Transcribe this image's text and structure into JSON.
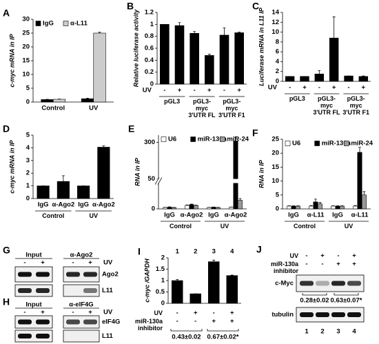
{
  "chart_data": [
    {
      "panel": "A",
      "type": "bar",
      "ylabel": "c-myc mRNA in IP",
      "categories": [
        "Control",
        "UV"
      ],
      "series": [
        {
          "name": "IgG",
          "color": "#000000",
          "values": [
            0.9,
            1.2
          ],
          "errors": [
            0.1,
            0.2
          ]
        },
        {
          "name": "α-L11",
          "color": "#cccccc",
          "values": [
            1,
            25
          ],
          "errors": [
            0.1,
            0.3
          ]
        }
      ],
      "ylim": [
        0,
        30
      ],
      "yticks": [
        0,
        5,
        10,
        15,
        20,
        25,
        30
      ],
      "legend": "top-left"
    },
    {
      "panel": "B",
      "type": "bar",
      "ylabel": "Relative luciferase activity",
      "xlabel": "UV",
      "categories": [
        "-",
        "+",
        "-",
        "+",
        "-",
        "+"
      ],
      "groups": [
        "pGL3",
        "pGL3-myc 3'UTR FL",
        "pGL3-myc 3'UTR F1"
      ],
      "series": [
        {
          "color": "#000000",
          "values": [
            1,
            0.98,
            0.85,
            0.48,
            0.82,
            0.86
          ],
          "errors": [
            0,
            0.05,
            0.03,
            0.02,
            0.12,
            0.01
          ]
        }
      ],
      "ylim": [
        0,
        1.2
      ],
      "yticks": [
        0,
        0.2,
        0.4,
        0.6,
        0.8,
        1,
        1.2
      ]
    },
    {
      "panel": "C",
      "type": "bar",
      "ylabel": "Luciferase mRNA in L11 IP",
      "xlabel": "UV",
      "categories": [
        "-",
        "+",
        "-",
        "+",
        "-",
        "+"
      ],
      "groups": [
        "pGL3",
        "pGL3-myc 3'UTR FL",
        "pGL3-myc 3'UTR F1"
      ],
      "series": [
        {
          "color": "#000000",
          "values": [
            1,
            1,
            1.5,
            8.8,
            1.1,
            1
          ],
          "errors": [
            0,
            0,
            0.7,
            4.3,
            0,
            0.1
          ]
        }
      ],
      "ylim": [
        0,
        14
      ],
      "yticks": [
        0,
        2,
        4,
        6,
        8,
        10,
        12,
        14
      ]
    },
    {
      "panel": "D",
      "type": "bar",
      "ylabel": "c-myc mRNA in IP",
      "categories": [
        "IgG",
        "α-Ago2",
        "IgG",
        "α-Ago2"
      ],
      "groups": [
        "Control",
        "UV"
      ],
      "series": [
        {
          "color": "#000000",
          "values": [
            1,
            1.35,
            1,
            4.05
          ],
          "errors": [
            0,
            0.45,
            0,
            0.1
          ]
        }
      ],
      "ylim": [
        0,
        5
      ],
      "yticks": [
        0,
        1,
        2,
        3,
        4,
        5
      ]
    },
    {
      "panel": "E",
      "type": "bar",
      "ylabel": "RNA in IP",
      "categories": [
        "IgG",
        "α-Ago2",
        "IgG",
        "α-Ago2"
      ],
      "groups": [
        "Control",
        "UV"
      ],
      "series": [
        {
          "name": "U6",
          "color": "#ffffff",
          "values": [
            0.8,
            2,
            0.8,
            1
          ],
          "errors": [
            0.1,
            0.3,
            0.1,
            0.1
          ]
        },
        {
          "name": "miR-130a",
          "color": "#000000",
          "values": [
            1,
            2.5,
            1,
            310
          ],
          "errors": [
            0.2,
            0.3,
            0.1,
            25
          ]
        },
        {
          "name": "miR-24",
          "color": "#999999",
          "values": [
            0.8,
            2,
            0.8,
            5
          ],
          "errors": [
            0.1,
            0.2,
            0.1,
            1
          ]
        }
      ],
      "ylim": [
        0,
        350
      ],
      "ybreak": [
        15,
        50
      ],
      "yticks": [
        0,
        50,
        300
      ],
      "legend": "top"
    },
    {
      "panel": "F",
      "type": "bar",
      "ylabel": "RNA in IP",
      "categories": [
        "IgG",
        "α-L11",
        "IgG",
        "α-L11"
      ],
      "groups": [
        "Control",
        "UV"
      ],
      "series": [
        {
          "name": "U6",
          "color": "#ffffff",
          "values": [
            1,
            1,
            1,
            1
          ],
          "errors": [
            0.1,
            0.2,
            0.1,
            0.2
          ]
        },
        {
          "name": "miR-130a",
          "color": "#000000",
          "values": [
            1,
            2.5,
            1,
            20.3
          ],
          "errors": [
            0.1,
            1,
            0.1,
            1.8
          ]
        },
        {
          "name": "miR-24",
          "color": "#999999",
          "values": [
            1,
            1.8,
            1,
            5
          ],
          "errors": [
            0.1,
            0.5,
            0.1,
            1.2
          ]
        }
      ],
      "ylim": [
        0,
        25
      ],
      "yticks": [
        0,
        5,
        10,
        15,
        20,
        25
      ],
      "legend": "top"
    },
    {
      "panel": "I",
      "type": "bar",
      "ylabel": "c-myc /GAPDH",
      "categories": [
        "1",
        "2",
        "3",
        "4"
      ],
      "conditions": [
        {
          "label": "UV",
          "values": [
            "-",
            "+",
            "-",
            "+"
          ]
        },
        {
          "label": "miR-130a inhibitor",
          "values": [
            "-",
            "-",
            "+",
            "+"
          ]
        }
      ],
      "annotations": [
        "0.43±0.02",
        "0.67±0.02*"
      ],
      "series": [
        {
          "color": "#000000",
          "values": [
            1,
            0.42,
            1.83,
            1.22
          ],
          "errors": [
            0.05,
            0,
            0.07,
            0.02
          ]
        }
      ],
      "ylim": [
        0,
        2
      ],
      "yticks": [
        0,
        0.5,
        1,
        1.5,
        2
      ]
    }
  ],
  "blots": [
    {
      "panel": "G",
      "headers": [
        "Input",
        "α-Ago2"
      ],
      "lanes": [
        "-",
        "+",
        "-",
        "+"
      ],
      "lane_label": "UV",
      "rows": [
        "Ago2",
        "L11"
      ]
    },
    {
      "panel": "H",
      "headers": [
        "Input",
        "α-eIF4G"
      ],
      "lanes": [
        "-",
        "+",
        "-",
        "+"
      ],
      "lane_label": "UV",
      "rows": [
        "eIF4G",
        "L11"
      ]
    },
    {
      "panel": "J",
      "conditions": [
        {
          "label": "UV",
          "values": [
            "-",
            "+",
            "-",
            "+"
          ]
        },
        {
          "label": "miR-130a inhibitor",
          "values": [
            "-",
            "-",
            "+",
            "+"
          ]
        }
      ],
      "rows": [
        "c-Myc",
        "tubulin"
      ],
      "annotations": [
        "0.28±0.02",
        "0.63±0.07*"
      ],
      "lanes": [
        "1",
        "2",
        "3",
        "4"
      ]
    }
  ]
}
